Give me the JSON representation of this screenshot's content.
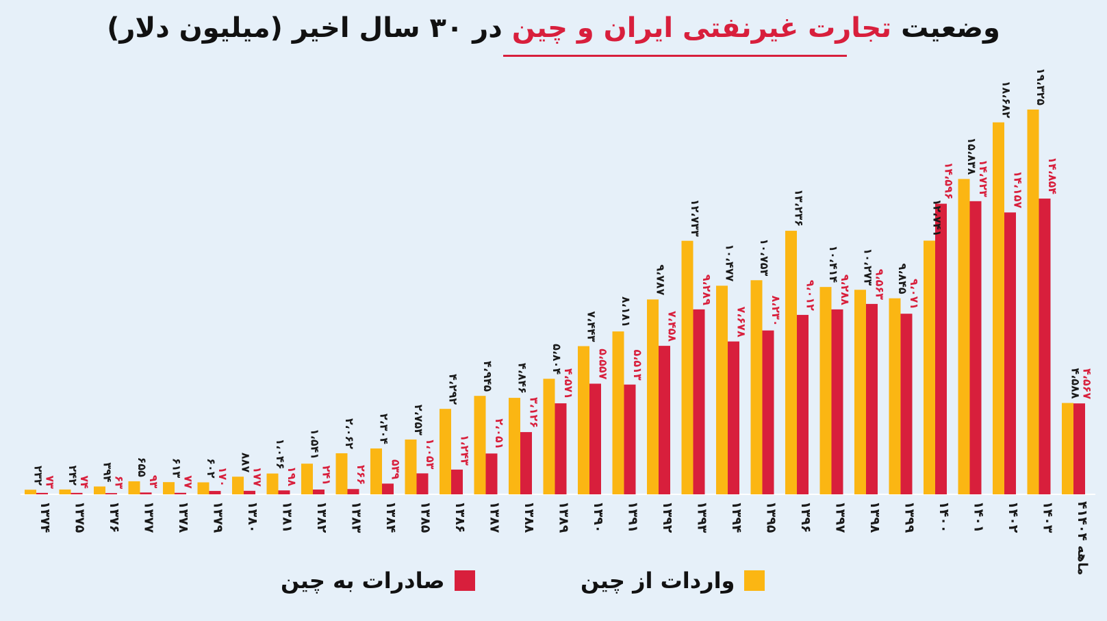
{
  "title": {
    "part1": "وضعیت",
    "highlight": "تجارت غیرنفتی ایران و چین",
    "part2": "در ۳۰ سال اخیر (میلیون دلار)"
  },
  "colors": {
    "imports": "#fbb613",
    "exports": "#d81f3c",
    "highlight": "#d81f3c",
    "background": "#e6f0f9"
  },
  "legend": {
    "imports": "واردات از چین",
    "exports": "صادرات به چین"
  },
  "chart_data": {
    "type": "bar",
    "categories": [
      "۱۳۷۴",
      "۱۳۷۵",
      "۱۳۷۶",
      "۱۳۷۷",
      "۱۳۷۸",
      "۱۳۷۹",
      "۱۳۸۰",
      "۱۳۸۱",
      "۱۳۸۲",
      "۱۳۸۳",
      "۱۳۸۴",
      "۱۳۸۵",
      "۱۳۸۶",
      "۱۳۸۷",
      "۱۳۸۸",
      "۱۳۸۹",
      "۱۳۹۰",
      "۱۳۹۱",
      "۱۳۹۲",
      "۱۳۹۳",
      "۱۳۹۴",
      "۱۳۹۵",
      "۱۳۹۶",
      "۱۳۹۷",
      "۱۳۹۸",
      "۱۳۹۹",
      "۱۴۰۰",
      "۱۴۰۱",
      "۱۴۰۲",
      "۱۴۰۳",
      "۴ماهه ۱۴۰۴"
    ],
    "series": [
      {
        "name": "واردات از چین",
        "values": [
          232,
          242,
          394,
          655,
          613,
          602,
          887,
          1046,
          1541,
          2062,
          2304,
          2753,
          4292,
          4945,
          4846,
          5804,
          7443,
          8181,
          9787,
          12733,
          10477,
          10753,
          13236,
          10414,
          10273,
          9845,
          12741,
          15838,
          18682,
          19325,
          4588
        ],
        "labels": [
          "۲۳۲",
          "۲۴۲",
          "۳۹۴",
          "۶۵۵",
          "۶۱۳",
          "۶۰۲",
          "۸۸۷",
          "۱،۰۴۶",
          "۱،۵۴۱",
          "۲،۰۶۲",
          "۲،۳۰۴",
          "۲،۷۵۳",
          "۴،۲۹۲",
          "۴،۹۴۵",
          "۴،۸۴۶",
          "۵،۸۰۴",
          "۷،۴۴۳",
          "۸،۱۸۱",
          "۹،۷۸۷",
          "۱۲،۷۳۳",
          "۱۰،۴۷۷",
          "۱۰،۷۵۳",
          "۱۳،۲۳۶",
          "۱۰،۴۱۴",
          "۱۰،۲۷۳",
          "۹،۸۴۵",
          "۱۲،۷۴۱",
          "۱۵،۸۳۸",
          "۱۸،۶۸۲",
          "۱۹،۳۲۵",
          "۴،۵۸۸"
        ]
      },
      {
        "name": "صادرات به چین",
        "values": [
          73,
          74,
          63,
          93,
          77,
          170,
          177,
          198,
          241,
          266,
          539,
          1053,
          1243,
          2051,
          3126,
          4571,
          5557,
          5513,
          7458,
          9289,
          7678,
          8230,
          9012,
          9288,
          9563,
          9071,
          14596,
          14723,
          14157,
          14854,
          4567
        ],
        "labels": [
          "۷۳",
          "۷۴",
          "۶۳",
          "۹۳",
          "۷۷",
          "۱۷۰",
          "۱۷۷",
          "۱۹۸",
          "۲۴۱",
          "۲۶۶",
          "۵۳۹",
          "۱،۰۵۳",
          "۱،۲۴۳",
          "۲،۰۵۱",
          "۳،۱۲۶",
          "۴،۵۷۱",
          "۵،۵۵۷",
          "۵،۵۱۳",
          "۷،۴۵۸",
          "۹،۲۸۹",
          "۷،۶۷۸",
          "۸،۲۳۰",
          "۹،۰۱۲",
          "۹،۲۸۸",
          "۹،۵۶۳",
          "۹،۰۷۱",
          "۱۴،۵۹۶",
          "۱۴،۷۲۳",
          "۱۴،۱۵۷",
          "۱۴،۸۵۴",
          "۴،۵۶۷"
        ]
      }
    ],
    "ylim": [
      0,
      19325
    ],
    "grid": false,
    "legend_position": "bottom"
  }
}
